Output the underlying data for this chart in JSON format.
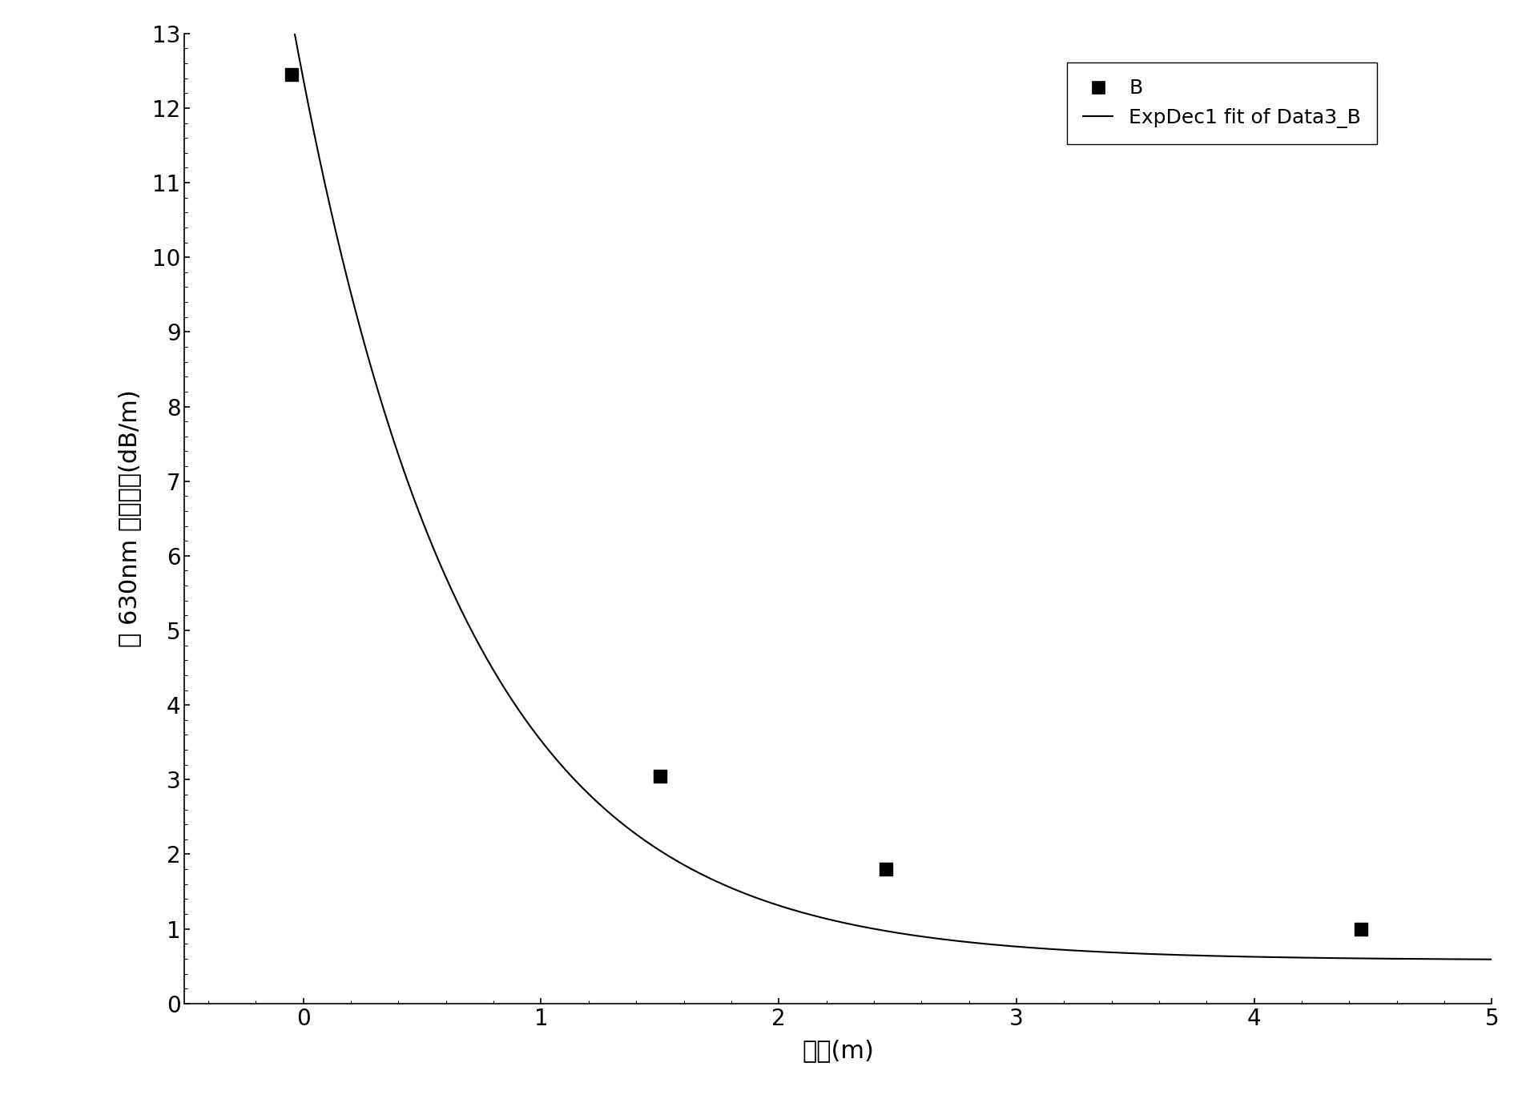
{
  "scatter_x": [
    -0.05,
    1.5,
    2.45,
    4.45
  ],
  "scatter_y": [
    12.45,
    3.05,
    1.8,
    1.0
  ],
  "fit_A": 11.8,
  "fit_t": 0.72,
  "fit_y0": 0.58,
  "xlim": [
    -0.5,
    5.0
  ],
  "ylim": [
    0,
    13
  ],
  "xticks": [
    0,
    1,
    2,
    3,
    4,
    5
  ],
  "yticks": [
    0,
    1,
    2,
    3,
    4,
    5,
    6,
    7,
    8,
    9,
    10,
    11,
    12,
    13
  ],
  "xlabel": "位置(m)",
  "ylabel": "在 630nm 处的衰减(dB/m)",
  "legend_scatter_label": "B",
  "legend_line_label": "ExpDec1 fit of Data3_B",
  "scatter_color": "#000000",
  "line_color": "#000000",
  "bg_color": "#ffffff",
  "marker_size": 11,
  "line_width": 1.5,
  "legend_fontsize": 18,
  "axis_fontsize": 22,
  "tick_fontsize": 20
}
